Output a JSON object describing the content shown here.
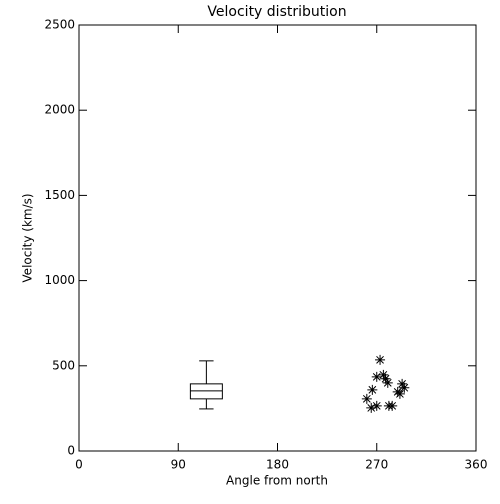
{
  "chart_data": {
    "type": "scatter",
    "title": "Velocity distribution",
    "x_label": "Angle from north",
    "y_label": "Velocity (km/s)",
    "x": [
      273,
      270,
      276,
      278,
      280,
      266,
      261,
      293,
      295,
      289,
      291,
      265,
      270,
      281,
      284
    ],
    "values": [
      535,
      435,
      447,
      424,
      400,
      359,
      306,
      394,
      371,
      347,
      335,
      253,
      265,
      265,
      265
    ],
    "marker": "asterisk",
    "color": "#000000",
    "box": {
      "x": 115.5,
      "width": 29,
      "whislo": 247,
      "q1": 306,
      "med": 353,
      "q3": 394,
      "whishi": 529
    },
    "xlim": [
      0,
      360
    ],
    "xticks": [
      0,
      90,
      180,
      270,
      360
    ],
    "ylim": [
      0,
      2500
    ],
    "yticks": [
      0,
      500,
      1000,
      1500,
      2000,
      2500
    ],
    "grid": false
  }
}
